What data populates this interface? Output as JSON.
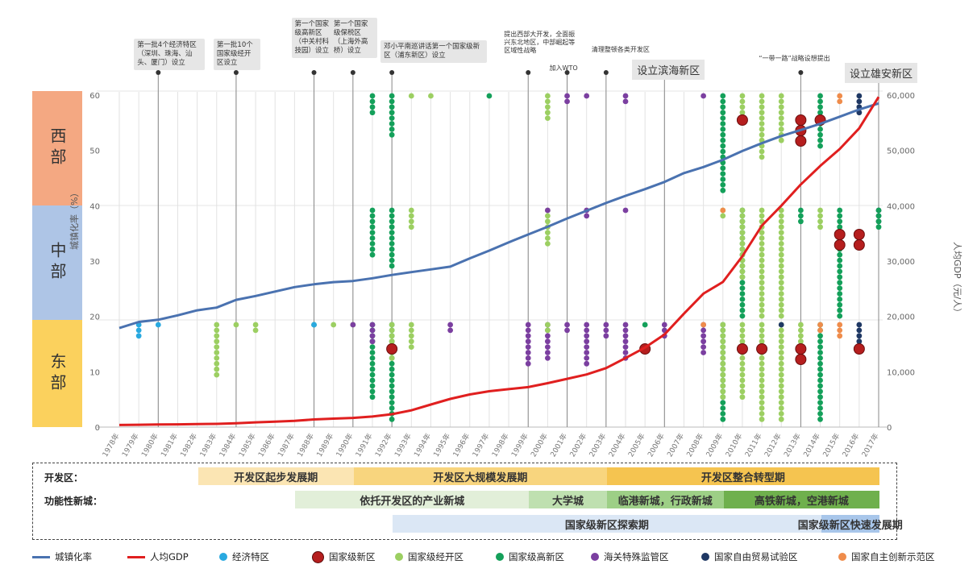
{
  "chart_data": {
    "type": "line",
    "title": "",
    "regions": [
      "西部",
      "中部",
      "东部"
    ],
    "ylabel_left": "城镇化率（%）",
    "ylabel_right": "人均GDP（元/人）",
    "y_left_ticks": [
      "0",
      "10",
      "20",
      "30",
      "40",
      "50",
      "60"
    ],
    "y_left_lim": [
      0,
      60
    ],
    "y_right_ticks": [
      "0",
      "10,000",
      "20,000",
      "30,000",
      "40,000",
      "50,000",
      "60,000"
    ],
    "y_right_lim": [
      0,
      60000
    ],
    "x_ticks": [
      "1978年",
      "1979年",
      "1980年",
      "1981年",
      "1982年",
      "1983年",
      "1984年",
      "1985年",
      "1986年",
      "1987年",
      "1988年",
      "1989年",
      "1990年",
      "1991年",
      "1992年",
      "1993年",
      "1994年",
      "1995年",
      "1996年",
      "1997年",
      "1998年",
      "1999年",
      "2000年",
      "2001年",
      "2002年",
      "2003年",
      "2004年",
      "2005年",
      "2006年",
      "2007年",
      "2008年",
      "2009年",
      "2010年",
      "2011年",
      "2012年",
      "2013年",
      "2014年",
      "2015年",
      "2016年",
      "2017年"
    ],
    "series": [
      {
        "name": "城镇化率",
        "color": "#4a72b0",
        "axis": "left",
        "x": [
          1978,
          1979,
          1980,
          1981,
          1982,
          1983,
          1984,
          1985,
          1986,
          1987,
          1988,
          1989,
          1990,
          1991,
          1992,
          1993,
          1994,
          1995,
          1996,
          1997,
          1998,
          1999,
          2000,
          2001,
          2002,
          2003,
          2004,
          2005,
          2006,
          2007,
          2008,
          2009,
          2010,
          2011,
          2012,
          2013,
          2014,
          2015,
          2016,
          2017
        ],
        "y": [
          17.9,
          19.0,
          19.4,
          20.2,
          21.1,
          21.6,
          23.0,
          23.7,
          24.5,
          25.3,
          25.8,
          26.2,
          26.4,
          26.9,
          27.5,
          28.0,
          28.5,
          29.0,
          30.5,
          31.9,
          33.4,
          34.8,
          36.2,
          37.7,
          39.1,
          40.5,
          41.8,
          43.0,
          44.3,
          45.9,
          47.0,
          48.3,
          49.9,
          51.3,
          52.6,
          53.7,
          54.8,
          56.1,
          57.4,
          58.5
        ]
      },
      {
        "name": "人均GDP",
        "color": "#e01f1f",
        "axis": "right",
        "x": [
          1978,
          1979,
          1980,
          1981,
          1982,
          1983,
          1984,
          1985,
          1986,
          1987,
          1988,
          1989,
          1990,
          1991,
          1992,
          1993,
          1994,
          1995,
          1996,
          1997,
          1998,
          1999,
          2000,
          2001,
          2002,
          2003,
          2004,
          2005,
          2006,
          2007,
          2008,
          2009,
          2010,
          2011,
          2012,
          2013,
          2014,
          2015,
          2016,
          2017
        ],
        "y": [
          385,
          423,
          468,
          497,
          533,
          588,
          702,
          866,
          973,
          1123,
          1378,
          1536,
          1663,
          1912,
          2334,
          3027,
          4081,
          5091,
          5898,
          6481,
          6860,
          7229,
          7942,
          8717,
          9506,
          10666,
          12487,
          14368,
          16738,
          20505,
          24121,
          26222,
          30876,
          36403,
          40007,
          43852,
          47203,
          50251,
          53980,
          59660
        ]
      }
    ],
    "markers": [
      {
        "region": "东部",
        "year": 1979,
        "type": "经济特区",
        "n": 3
      },
      {
        "region": "东部",
        "year": 1980,
        "type": "经济特区",
        "n": 1
      },
      {
        "region": "东部",
        "year": 1983,
        "type": "国家级经开区",
        "n": 10
      },
      {
        "region": "东部",
        "year": 1984,
        "type": "国家级经开区",
        "n": 1
      },
      {
        "region": "东部",
        "year": 1985,
        "type": "国家级经开区",
        "n": 2
      },
      {
        "region": "东部",
        "year": 1988,
        "type": "国家级高新区",
        "n": 1
      },
      {
        "region": "东部",
        "year": 1988,
        "type": "经济特区",
        "n": 1
      },
      {
        "region": "东部",
        "year": 1989,
        "type": "国家级经开区",
        "n": 1
      },
      {
        "region": "东部",
        "year": 1990,
        "type": "国家级经开区",
        "n": 1
      },
      {
        "region": "东部",
        "year": 1990,
        "type": "海关特殊监管区",
        "n": 1
      },
      {
        "region": "东部",
        "year": 1991,
        "type": "国家级高新区",
        "n": 14
      },
      {
        "region": "东部",
        "year": 1991,
        "type": "海关特殊监管区",
        "n": 4
      },
      {
        "region": "东部",
        "year": 1992,
        "type": "国家级高新区",
        "n": 20
      },
      {
        "region": "东部",
        "year": 1992,
        "type": "国家级经开区",
        "n": 7
      },
      {
        "region": "东部",
        "year": 1992,
        "type": "国家级新区",
        "n": 1
      },
      {
        "region": "东部",
        "year": 1993,
        "type": "国家级经开区",
        "n": 5
      },
      {
        "region": "东部",
        "year": 1995,
        "type": "海关特殊监管区",
        "n": 2
      },
      {
        "region": "东部",
        "year": 1999,
        "type": "海关特殊监管区",
        "n": 8
      },
      {
        "region": "东部",
        "year": 2000,
        "type": "海关特殊监管区",
        "n": 7
      },
      {
        "region": "东部",
        "year": 2000,
        "type": "国家级经开区",
        "n": 2
      },
      {
        "region": "东部",
        "year": 2001,
        "type": "海关特殊监管区",
        "n": 2
      },
      {
        "region": "东部",
        "year": 2002,
        "type": "海关特殊监管区",
        "n": 8
      },
      {
        "region": "东部",
        "year": 2003,
        "type": "海关特殊监管区",
        "n": 3
      },
      {
        "region": "东部",
        "year": 2004,
        "type": "海关特殊监管区",
        "n": 7
      },
      {
        "region": "东部",
        "year": 2005,
        "type": "国家级新区",
        "n": 1
      },
      {
        "region": "东部",
        "year": 2005,
        "type": "国家级高新区",
        "n": 1
      },
      {
        "region": "东部",
        "year": 2006,
        "type": "海关特殊监管区",
        "n": 3
      },
      {
        "region": "东部",
        "year": 2008,
        "type": "海关特殊监管区",
        "n": 6
      },
      {
        "region": "东部",
        "year": 2008,
        "type": "国家自主创新示范区",
        "n": 1
      },
      {
        "region": "东部",
        "year": 2009,
        "type": "国家级高新区",
        "n": 20
      },
      {
        "region": "东部",
        "year": 2009,
        "type": "国家级经开区",
        "n": 14
      },
      {
        "region": "东部",
        "year": 2010,
        "type": "国家级经开区",
        "n": 14
      },
      {
        "region": "东部",
        "year": 2010,
        "type": "国家级新区",
        "n": 1
      },
      {
        "region": "东部",
        "year": 2011,
        "type": "国家级经开区",
        "n": 20
      },
      {
        "region": "东部",
        "year": 2011,
        "type": "国家级新区",
        "n": 1
      },
      {
        "region": "东部",
        "year": 2012,
        "type": "国家级经开区",
        "n": 19
      },
      {
        "region": "东部",
        "year": 2012,
        "type": "国家自由贸易试验区",
        "n": 1
      },
      {
        "region": "东部",
        "year": 2013,
        "type": "国家级经开区",
        "n": 6
      },
      {
        "region": "东部",
        "year": 2013,
        "type": "国家级新区",
        "n": 2
      },
      {
        "region": "东部",
        "year": 2014,
        "type": "国家级高新区",
        "n": 20
      },
      {
        "region": "东部",
        "year": 2014,
        "type": "国家自主创新示范区",
        "n": 2
      },
      {
        "region": "东部",
        "year": 2015,
        "type": "国家自主创新示范区",
        "n": 3
      },
      {
        "region": "东部",
        "year": 2016,
        "type": "国家自由贸易试验区",
        "n": 4
      },
      {
        "region": "东部",
        "year": 2016,
        "type": "国家级新区",
        "n": 1
      },
      {
        "region": "中部",
        "year": 1991,
        "type": "国家级高新区",
        "n": 9
      },
      {
        "region": "中部",
        "year": 1992,
        "type": "国家级高新区",
        "n": 11
      },
      {
        "region": "中部",
        "year": 1993,
        "type": "国家级经开区",
        "n": 4
      },
      {
        "region": "中部",
        "year": 2000,
        "type": "国家级经开区",
        "n": 7
      },
      {
        "region": "中部",
        "year": 2000,
        "type": "海关特殊监管区",
        "n": 1
      },
      {
        "region": "中部",
        "year": 2002,
        "type": "海关特殊监管区",
        "n": 2
      },
      {
        "region": "中部",
        "year": 2004,
        "type": "海关特殊监管区",
        "n": 1
      },
      {
        "region": "中部",
        "year": 2009,
        "type": "国家级经开区",
        "n": 2
      },
      {
        "region": "中部",
        "year": 2009,
        "type": "国家自主创新示范区",
        "n": 1
      },
      {
        "region": "中部",
        "year": 2010,
        "type": "国家级高新区",
        "n": 20
      },
      {
        "region": "中部",
        "year": 2010,
        "type": "国家级经开区",
        "n": 13
      },
      {
        "region": "中部",
        "year": 2011,
        "type": "国家级经开区",
        "n": 20
      },
      {
        "region": "中部",
        "year": 2012,
        "type": "国家级经开区",
        "n": 20
      },
      {
        "region": "中部",
        "year": 2013,
        "type": "国家级高新区",
        "n": 3
      },
      {
        "region": "中部",
        "year": 2014,
        "type": "国家级经开区",
        "n": 4
      },
      {
        "region": "中部",
        "year": 2015,
        "type": "国家级高新区",
        "n": 20
      },
      {
        "region": "中部",
        "year": 2015,
        "type": "国家级新区",
        "n": 2
      },
      {
        "region": "中部",
        "year": 2016,
        "type": "国家级新区",
        "n": 2
      },
      {
        "region": "中部",
        "year": 2017,
        "type": "国家自由贸易试验区",
        "n": 3
      },
      {
        "region": "中部",
        "year": 2017,
        "type": "国家级高新区",
        "n": 4
      },
      {
        "region": "西部",
        "year": 1991,
        "type": "国家级高新区",
        "n": 4
      },
      {
        "region": "西部",
        "year": 1992,
        "type": "国家级高新区",
        "n": 8
      },
      {
        "region": "西部",
        "year": 1993,
        "type": "国家级经开区",
        "n": 1
      },
      {
        "region": "西部",
        "year": 1994,
        "type": "国家级经开区",
        "n": 1
      },
      {
        "region": "西部",
        "year": 1997,
        "type": "国家级高新区",
        "n": 1
      },
      {
        "region": "西部",
        "year": 2000,
        "type": "国家级经开区",
        "n": 5
      },
      {
        "region": "西部",
        "year": 2001,
        "type": "海关特殊监管区",
        "n": 2
      },
      {
        "region": "西部",
        "year": 2002,
        "type": "海关特殊监管区",
        "n": 1
      },
      {
        "region": "西部",
        "year": 2004,
        "type": "海关特殊监管区",
        "n": 2
      },
      {
        "region": "西部",
        "year": 2008,
        "type": "海关特殊监管区",
        "n": 1
      },
      {
        "region": "西部",
        "year": 2009,
        "type": "国家级高新区",
        "n": 18
      },
      {
        "region": "西部",
        "year": 2010,
        "type": "国家级经开区",
        "n": 4
      },
      {
        "region": "西部",
        "year": 2010,
        "type": "国家级新区",
        "n": 1
      },
      {
        "region": "西部",
        "year": 2011,
        "type": "国家级经开区",
        "n": 12
      },
      {
        "region": "西部",
        "year": 2012,
        "type": "国家级经开区",
        "n": 9
      },
      {
        "region": "西部",
        "year": 2013,
        "type": "国家级新区",
        "n": 3
      },
      {
        "region": "西部",
        "year": 2014,
        "type": "国家级高新区",
        "n": 10
      },
      {
        "region": "西部",
        "year": 2014,
        "type": "国家级新区",
        "n": 1
      },
      {
        "region": "西部",
        "year": 2015,
        "type": "国家自主创新示范区",
        "n": 2
      },
      {
        "region": "西部",
        "year": 2016,
        "type": "国家自由贸易试验区",
        "n": 4
      }
    ]
  },
  "annotations": [
    {
      "year": 1980,
      "text": "第一批4个经济特区（深圳、珠海、汕头、厦门）设立",
      "style": "box"
    },
    {
      "year": 1984,
      "text": "第一批10个国家级经开区设立",
      "style": "box"
    },
    {
      "year": 1988,
      "text": "第一个国家级高新区（中关村科技园）设立",
      "style": "box"
    },
    {
      "year": 1990,
      "text": "第一个国家级保税区（上海外高桥）设立",
      "style": "box"
    },
    {
      "year": 1992,
      "text": "邓小平南巡讲话第一个国家级新区（浦东新区）设立",
      "style": "box"
    },
    {
      "year": 1999,
      "text": "提出西部大开发，全面振兴东北地区，中部崛起等区域性战略",
      "style": "plain"
    },
    {
      "year": 2001,
      "text": "加入WTO",
      "style": "plain"
    },
    {
      "year": 2003,
      "text": "清理整顿各类开发区",
      "style": "plain"
    },
    {
      "year": 2006,
      "text": "设立滨海新区",
      "style": "big"
    },
    {
      "year": 2013,
      "text": "“一带一路”战略设想提出",
      "style": "plain"
    },
    {
      "year": 2017,
      "text": "设立雄安新区",
      "style": "big"
    }
  ],
  "periods": {
    "row1_label": "开发区：",
    "row2_label": "功能性新城：",
    "row1": [
      {
        "label": "开发区起步发展期",
        "from": 1982,
        "to": 1990,
        "color": "#fbe5b3"
      },
      {
        "label": "开发区大规模发展期",
        "from": 1990,
        "to": 2003,
        "color": "#f8d57e"
      },
      {
        "label": "开发区整合转型期",
        "from": 2003,
        "to": 2017,
        "color": "#f5c450"
      }
    ],
    "row2": [
      {
        "label": "依托开发区的产业新城",
        "from": 1987,
        "to": 1999,
        "color": "#e2efd9"
      },
      {
        "label": "大学城",
        "from": 1999,
        "to": 2003,
        "color": "#bfe0b0"
      },
      {
        "label": "临港新城，行政新城",
        "from": 2003,
        "to": 2009,
        "color": "#9dcf86"
      },
      {
        "label": "高铁新城，空港新城",
        "from": 2009,
        "to": 2017,
        "color": "#6fb04d"
      }
    ],
    "row3": [
      {
        "label": "国家级新区探索期",
        "from": 1992,
        "to": 2014,
        "color": "#dbe7f5"
      },
      {
        "label": "国家级新区快速发展期",
        "from": 2014,
        "to": 2017,
        "color": "#a8c6ea"
      }
    ]
  },
  "legend": [
    {
      "label": "城镇化率",
      "kind": "line",
      "color": "#4a72b0"
    },
    {
      "label": "人均GDP",
      "kind": "line",
      "color": "#e01f1f"
    },
    {
      "label": "经济特区",
      "kind": "dot",
      "color": "#29a9e0"
    },
    {
      "label": "国家级新区",
      "kind": "bigdot",
      "color": "#b51e1e"
    },
    {
      "label": "国家级经开区",
      "kind": "dot",
      "color": "#9ccf62"
    },
    {
      "label": "国家级高新区",
      "kind": "dot",
      "color": "#14a05a"
    },
    {
      "label": "海关特殊监管区",
      "kind": "dot",
      "color": "#7b3fa0"
    },
    {
      "label": "国家自由贸易试验区",
      "kind": "dot",
      "color": "#1f3864"
    },
    {
      "label": "国家自主创新示范区",
      "kind": "dot",
      "color": "#ef8c4b"
    }
  ]
}
